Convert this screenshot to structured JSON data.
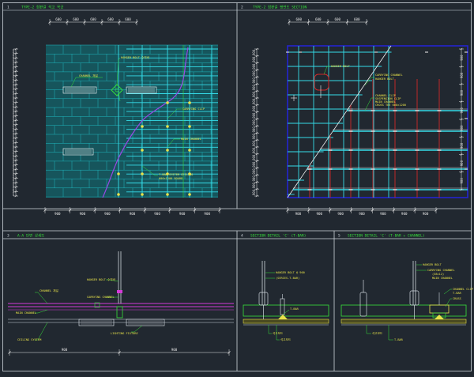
{
  "colors": {
    "background": "#212830",
    "frame": "#cfd6dd",
    "dimension": "#e6e6e6",
    "grid_cyan": "#35dce8",
    "tile_fill": "#16555c",
    "tile_line": "#1fb7bf",
    "leader_green": "#37e03b",
    "note_yellow": "#e8e24a",
    "section_magenta": "#d43ad8",
    "purple_curve": "#9a47e6",
    "blue_frame": "#2424d0",
    "red_hanger": "#d02828",
    "white_mark": "#f2f2f2"
  },
  "panels": [
    {
      "number": "1",
      "title": "TYPE-2 합판걸 석고 목공"
    },
    {
      "number": "2",
      "title": "TYPE-2 합판걸 평면도 SECTION"
    },
    {
      "number": "3",
      "title": "A-A 단면 상세도"
    },
    {
      "number": "4",
      "title": "SECTION DETAIL 'C' (T-BAR)"
    },
    {
      "number": "5",
      "title": "SECTION DETAIL 'C' (T-BAR + CHANNEL)"
    }
  ],
  "dimensions": {
    "p1_top": [
      "600",
      "600",
      "600",
      "600",
      "600"
    ],
    "p1_bottom": [
      "900",
      "900",
      "900",
      "900",
      "900",
      "900",
      "900"
    ],
    "p1_left": [
      "600",
      "600",
      "600",
      "600",
      "600",
      "600",
      "600",
      "600",
      "600",
      "600",
      "600",
      "600",
      "600",
      "600",
      "600",
      "600",
      "600",
      "600",
      "600",
      "600",
      "600",
      "600",
      "600",
      "600",
      "600",
      "600",
      "600",
      "600",
      "600",
      "600",
      "600",
      "600",
      "600"
    ],
    "p2_top": [
      "600",
      "600",
      "600",
      "600"
    ],
    "p2_left": [
      "900",
      "900",
      "900",
      "900",
      "900",
      "900",
      "900",
      "900",
      "900",
      "900",
      "900",
      "900",
      "900",
      "900",
      "900",
      "900",
      "900",
      "900",
      "900",
      "900",
      "900"
    ],
    "p2_right": [
      "900",
      "900",
      "900",
      "900",
      "900",
      "900",
      "900",
      "900"
    ],
    "p2_bottom": [
      "900",
      "900",
      "900",
      "900",
      "900",
      "900",
      "900"
    ],
    "p3_bottom": [
      "900",
      "900"
    ]
  },
  "notes": {
    "p1_hanger": "HANGER BOLT 수직바",
    "p1_channel": "CHANNEL 채널",
    "p1_clip": "CARRYING CLIP",
    "p1_main": "MAIN CHANNEL",
    "p1_tbar_1": "T-BAR SYSTEM CEILING",
    "p1_tbar_2": "600×1200 BOARD",
    "p2_hanger": "HANGER BOLT",
    "p2_channel_1": "CARRYING CHANNEL",
    "p2_channel_2": "HANGER BOLT",
    "p2_clip_1": "CHANNEL CLIP",
    "p2_clip_2": "SUSPENSION CLIP",
    "p2_clip_3": "MAIN CHANNEL",
    "p2_clip_4": "CROSS TEE 600×1200",
    "p3_note_1": "CHANNEL 채널",
    "p3_note_2": "MAIN CHANNEL",
    "p3_note_3": "HANGER BOLT 수직바",
    "p3_note_4": "CARRYING CHANNEL",
    "p3_note_5": "CEILING SYSTEM",
    "p3_note_6": "LIGHTING FIXTURE",
    "p4_note_1": "HANGER BOLT @ 900",
    "p4_note_2": "(SERIES-T-BAR)",
    "p4_note_3": "T-BAR",
    "p4_note_4": "석고보드",
    "p4_note_5": "석고보드",
    "p5_note_1": "HANGER BOLT",
    "p5_note_2": "CARRYING CHANNEL",
    "p5_note_3": "(38×12)",
    "p5_note_4": "MAIN CHANNEL",
    "p5_note_5": "CHANNEL CLIP",
    "p5_note_6": "T-BAR",
    "p5_note_7": "CROSS",
    "p5_note_8": "석고보드",
    "p5_note_9": "T-BAR"
  }
}
